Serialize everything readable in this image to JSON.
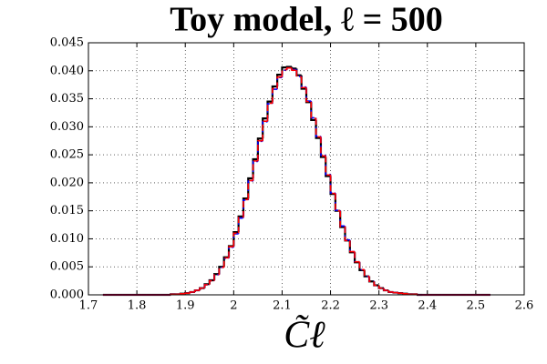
{
  "chart_data": {
    "type": "histogram",
    "title": "Toy model, ℓ = 500",
    "xlabel": "C̃ℓ",
    "bins": [
      1.73,
      1.74,
      1.75,
      1.76,
      1.77,
      1.78,
      1.79,
      1.8,
      1.81,
      1.82,
      1.83,
      1.84,
      1.85,
      1.86,
      1.87,
      1.88,
      1.89,
      1.9,
      1.91,
      1.92,
      1.93,
      1.94,
      1.95,
      1.96,
      1.97,
      1.98,
      1.99,
      2.0,
      2.01,
      2.02,
      2.03,
      2.04,
      2.05,
      2.06,
      2.07,
      2.08,
      2.09,
      2.1,
      2.11,
      2.12,
      2.13,
      2.14,
      2.15,
      2.16,
      2.17,
      2.18,
      2.19,
      2.2,
      2.21,
      2.22,
      2.23,
      2.24,
      2.25,
      2.26,
      2.27,
      2.28,
      2.29,
      2.3,
      2.31,
      2.32,
      2.33,
      2.34,
      2.35,
      2.36,
      2.37,
      2.38,
      2.39,
      2.4,
      2.41,
      2.42,
      2.43,
      2.44,
      2.45,
      2.46,
      2.47,
      2.48,
      2.49,
      2.5,
      2.51,
      2.52,
      2.53
    ],
    "series": [
      {
        "color": "#000000",
        "linestyle": "solid",
        "values": [
          0,
          0,
          0,
          0,
          0,
          0,
          0,
          0,
          0,
          0,
          0,
          0,
          0,
          0,
          0.0001,
          0.0001,
          0.0002,
          0.0003,
          0.0005,
          0.0008,
          0.0012,
          0.0019,
          0.0026,
          0.0037,
          0.005,
          0.0067,
          0.0087,
          0.0112,
          0.014,
          0.0172,
          0.0208,
          0.0242,
          0.0279,
          0.0315,
          0.0345,
          0.0372,
          0.0393,
          0.0406,
          0.0407,
          0.0404,
          0.0392,
          0.0368,
          0.0344,
          0.0312,
          0.028,
          0.0246,
          0.0212,
          0.018,
          0.015,
          0.0121,
          0.0097,
          0.0076,
          0.0058,
          0.0044,
          0.0033,
          0.0024,
          0.0017,
          0.0012,
          0.0008,
          0.0005,
          0.0004,
          0.0003,
          0.0002,
          0.0001,
          0.0001,
          0,
          0,
          0,
          0,
          0,
          0,
          0,
          0,
          0,
          0,
          0,
          0,
          0,
          0,
          0
        ]
      },
      {
        "color": "#0000ff",
        "linestyle": "dashdot",
        "values": [
          0,
          0,
          0,
          0,
          0,
          0,
          0,
          0,
          0,
          0,
          0,
          0,
          0,
          0,
          0.0001,
          0.0001,
          0.0002,
          0.0003,
          0.0005,
          0.0008,
          0.0012,
          0.0018,
          0.0025,
          0.0036,
          0.0049,
          0.0065,
          0.0085,
          0.0109,
          0.0137,
          0.0169,
          0.0203,
          0.0238,
          0.0274,
          0.0309,
          0.0341,
          0.0367,
          0.0388,
          0.0401,
          0.0405,
          0.0402,
          0.039,
          0.0371,
          0.0346,
          0.0316,
          0.0283,
          0.0249,
          0.0215,
          0.0182,
          0.0151,
          0.0123,
          0.0098,
          0.0077,
          0.0059,
          0.0045,
          0.0033,
          0.0024,
          0.0017,
          0.0012,
          0.0008,
          0.0005,
          0.0004,
          0.0003,
          0.0002,
          0.0001,
          0.0001,
          0,
          0,
          0,
          0,
          0,
          0,
          0,
          0,
          0,
          0,
          0,
          0,
          0,
          0,
          0
        ]
      },
      {
        "color": "#ff0000",
        "linestyle": "dashed",
        "values": [
          0,
          0,
          0,
          0,
          0,
          0,
          0,
          0,
          0,
          0,
          0,
          0,
          0,
          0,
          0.0001,
          0.0001,
          0.0002,
          0.0003,
          0.0005,
          0.0008,
          0.0012,
          0.0018,
          0.0025,
          0.0036,
          0.0049,
          0.0066,
          0.0086,
          0.011,
          0.0138,
          0.017,
          0.0204,
          0.0239,
          0.0275,
          0.031,
          0.0342,
          0.0368,
          0.0389,
          0.0402,
          0.0405,
          0.0401,
          0.0389,
          0.037,
          0.0345,
          0.0315,
          0.0282,
          0.0248,
          0.0214,
          0.0181,
          0.015,
          0.0122,
          0.0097,
          0.0077,
          0.0059,
          0.0045,
          0.0033,
          0.0024,
          0.0017,
          0.0012,
          0.0008,
          0.0005,
          0.0004,
          0.0003,
          0.0002,
          0.0001,
          0.0001,
          0,
          0,
          0,
          0,
          0,
          0,
          0,
          0,
          0,
          0,
          0,
          0,
          0,
          0,
          0
        ]
      }
    ],
    "xlim": [
      1.7,
      2.6
    ],
    "xticks": [
      1.7,
      1.8,
      1.9,
      2.0,
      2.1,
      2.2,
      2.3,
      2.4,
      2.5,
      2.6
    ],
    "ylim": [
      0,
      0.045
    ],
    "yticks": [
      {
        "value": 0,
        "label": "0.000"
      },
      0.005,
      {
        "value": 0.01,
        "label": "0.010"
      },
      0.015,
      {
        "value": 0.02,
        "label": "0.020"
      },
      0.025,
      {
        "value": 0.03,
        "label": "0.030"
      },
      0.035,
      {
        "value": 0.04,
        "label": "0.040"
      },
      0.045
    ],
    "grid": true
  }
}
